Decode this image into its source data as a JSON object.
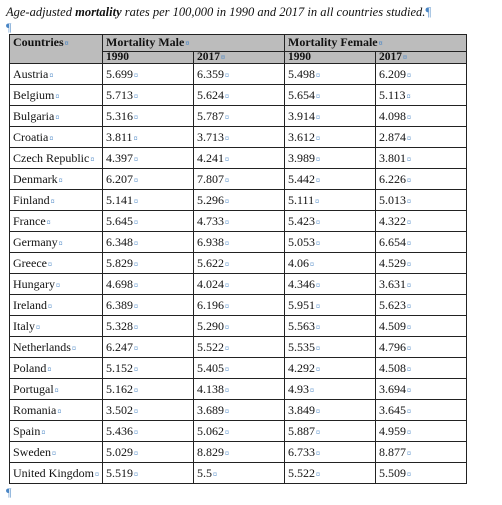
{
  "caption": {
    "before": "Age-adjusted",
    "bold": "mortality",
    "after": "rates per 100,000 in 1990 and 2017 in all countries studied."
  },
  "marks": {
    "pilcrow": "¶",
    "cell": "¤"
  },
  "table": {
    "header_country": "Countries",
    "group_male": "Mortality Male",
    "group_female": "Mortality Female",
    "year_1990_m": "1990",
    "year_2017_m": "2017",
    "year_1990_f": "1990",
    "year_2017_f": "2017",
    "rows": [
      {
        "country": "Austria",
        "m1990": "5.699",
        "m2017": "6.359",
        "f1990": "5.498",
        "f2017": "6.209"
      },
      {
        "country": "Belgium",
        "m1990": "5.713",
        "m2017": "5.624",
        "f1990": "5.654",
        "f2017": "5.113"
      },
      {
        "country": "Bulgaria",
        "m1990": "5.316",
        "m2017": "5.787",
        "f1990": "3.914",
        "f2017": "4.098"
      },
      {
        "country": "Croatia",
        "m1990": "3.811",
        "m2017": "3.713",
        "f1990": "3.612",
        "f2017": "2.874"
      },
      {
        "country": "Czech Republic",
        "m1990": "4.397",
        "m2017": "4.241",
        "f1990": "3.989",
        "f2017": "3.801"
      },
      {
        "country": "Denmark",
        "m1990": "6.207",
        "m2017": "7.807",
        "f1990": "5.442",
        "f2017": "6.226"
      },
      {
        "country": "Finland",
        "m1990": "5.141",
        "m2017": "5.296",
        "f1990": "5.111",
        "f2017": "5.013"
      },
      {
        "country": "France",
        "m1990": "5.645",
        "m2017": "4.733",
        "f1990": "5.423",
        "f2017": "4.322"
      },
      {
        "country": "Germany",
        "m1990": "6.348",
        "m2017": "6.938",
        "f1990": "5.053",
        "f2017": "6.654"
      },
      {
        "country": "Greece",
        "m1990": "5.829",
        "m2017": "5.622",
        "f1990": "4.06",
        "f2017": "4.529"
      },
      {
        "country": "Hungary",
        "m1990": "4.698",
        "m2017": "4.024",
        "f1990": "4.346",
        "f2017": "3.631"
      },
      {
        "country": "Ireland",
        "m1990": "6.389",
        "m2017": "6.196",
        "f1990": "5.951",
        "f2017": "5.623"
      },
      {
        "country": "Italy",
        "m1990": "5.328",
        "m2017": "5.290",
        "f1990": "5.563",
        "f2017": "4.509"
      },
      {
        "country": "Netherlands",
        "m1990": "6.247",
        "m2017": "5.522",
        "f1990": "5.535",
        "f2017": "4.796"
      },
      {
        "country": "Poland",
        "m1990": "5.152",
        "m2017": "5.405",
        "f1990": "4.292",
        "f2017": "4.508"
      },
      {
        "country": "Portugal",
        "m1990": "5.162",
        "m2017": "4.138",
        "f1990": "4.93",
        "f2017": "3.694"
      },
      {
        "country": "Romania",
        "m1990": "3.502",
        "m2017": "3.689",
        "f1990": "3.849",
        "f2017": "3.645"
      },
      {
        "country": "Spain",
        "m1990": "5.436",
        "m2017": "5.062",
        "f1990": "5.887",
        "f2017": "4.959"
      },
      {
        "country": "Sweden",
        "m1990": "5.029",
        "m2017": "8.829",
        "f1990": "6.733",
        "f2017": "8.877"
      },
      {
        "country": "United Kingdom",
        "m1990": "5.519",
        "m2017": "5.5",
        "f1990": "5.522",
        "f2017": "5.509"
      }
    ]
  }
}
